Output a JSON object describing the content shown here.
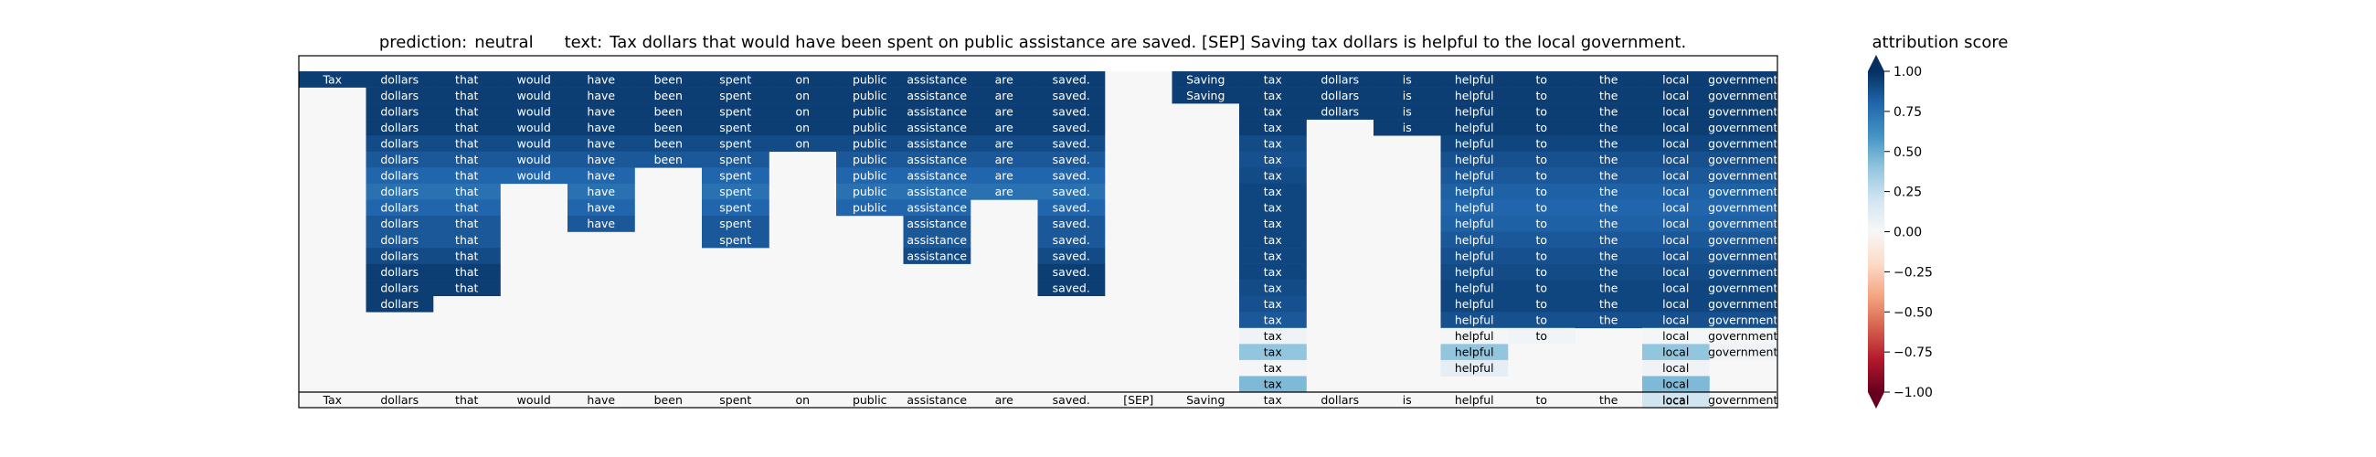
{
  "title": {
    "prediction_label": "prediction:",
    "prediction_value": "neutral",
    "text_label": "text:",
    "text_value": "Tax dollars that would have been spent on public assistance are saved. [SEP] Saving tax dollars is helpful to the local government."
  },
  "colorbar": {
    "label": "attribution score",
    "ticks": [
      "1.00",
      "0.75",
      "0.50",
      "0.25",
      "0.00",
      "−0.25",
      "−0.50",
      "−0.75",
      "−1.00"
    ]
  },
  "chart_data": {
    "type": "heatmap",
    "title": "prediction:  neutral     text:  Tax dollars that would have been spent on public assistance are saved. [SEP] Saving tax dollars is helpful to the local government.",
    "colorbar_label": "attribution score",
    "value_range": [
      -1.0,
      1.0
    ],
    "colormap": "RdBu (red = negative, white = 0, blue = positive)",
    "tokens": [
      "Tax",
      "dollars",
      "that",
      "would",
      "have",
      "been",
      "spent",
      "on",
      "public",
      "assistance",
      "are",
      "saved.",
      "[SEP]",
      "Saving",
      "tax",
      "dollars",
      "is",
      "helpful",
      "to",
      "the",
      "local",
      "government."
    ],
    "x_tick_labels": [
      "Tax",
      "dollars",
      "that",
      "would",
      "have",
      "been",
      "spent",
      "on",
      "public",
      "assistance",
      "are",
      "saved.",
      "[SEP]",
      "Saving",
      "tax",
      "dollars",
      "is",
      "helpful",
      "to",
      "the",
      "local",
      "government"
    ],
    "cell_labels": [
      "Tax",
      "dollars",
      "that",
      "would",
      "have",
      "been",
      "spent",
      "on",
      "public",
      "assistance",
      "are",
      "saved.",
      "",
      "Saving",
      "tax",
      "dollars",
      "is",
      "helpful",
      "to",
      "the",
      "local",
      "government"
    ],
    "n_rows": 21,
    "background_value": 0.0,
    "columns": [
      {
        "token": "Tax",
        "values": [
          0.95
        ]
      },
      {
        "token": "dollars",
        "values": [
          0.95,
          0.95,
          0.95,
          0.95,
          0.9,
          0.85,
          0.8,
          0.75,
          0.8,
          0.85,
          0.85,
          0.9,
          0.95,
          0.95,
          0.95
        ]
      },
      {
        "token": "that",
        "values": [
          0.95,
          0.95,
          0.95,
          0.95,
          0.9,
          0.85,
          0.8,
          0.75,
          0.8,
          0.85,
          0.85,
          0.9,
          0.95,
          0.95
        ]
      },
      {
        "token": "would",
        "values": [
          0.95,
          0.95,
          0.95,
          0.95,
          0.9,
          0.85,
          0.8
        ]
      },
      {
        "token": "have",
        "values": [
          0.95,
          0.95,
          0.95,
          0.95,
          0.9,
          0.85,
          0.8,
          0.75,
          0.8,
          0.85
        ]
      },
      {
        "token": "been",
        "values": [
          0.95,
          0.95,
          0.95,
          0.95,
          0.9,
          0.85
        ]
      },
      {
        "token": "spent",
        "values": [
          0.95,
          0.95,
          0.95,
          0.95,
          0.9,
          0.85,
          0.8,
          0.75,
          0.8,
          0.85,
          0.85
        ]
      },
      {
        "token": "on",
        "values": [
          0.95,
          0.95,
          0.95,
          0.95,
          0.9
        ]
      },
      {
        "token": "public",
        "values": [
          0.95,
          0.95,
          0.95,
          0.95,
          0.9,
          0.85,
          0.8,
          0.75,
          0.8
        ]
      },
      {
        "token": "assistance",
        "values": [
          0.95,
          0.95,
          0.95,
          0.95,
          0.9,
          0.85,
          0.8,
          0.75,
          0.8,
          0.85,
          0.85,
          0.9
        ]
      },
      {
        "token": "are",
        "values": [
          0.95,
          0.95,
          0.95,
          0.95,
          0.9,
          0.85,
          0.8,
          0.75
        ]
      },
      {
        "token": "saved.",
        "values": [
          0.95,
          0.95,
          0.95,
          0.95,
          0.9,
          0.85,
          0.8,
          0.75,
          0.8,
          0.85,
          0.85,
          0.9,
          0.95,
          0.95
        ]
      },
      {
        "token": "[SEP]",
        "values": []
      },
      {
        "token": "Saving",
        "values": [
          0.95,
          0.95
        ]
      },
      {
        "token": "tax",
        "values": [
          0.95,
          0.95,
          0.95,
          0.95,
          0.9,
          0.88,
          0.9,
          0.92,
          0.92,
          0.92,
          0.92,
          0.92,
          0.92,
          0.9,
          0.88,
          0.85,
          0.04,
          0.4,
          0.02,
          0.45
        ]
      },
      {
        "token": "dollars",
        "values": [
          0.95,
          0.95,
          0.95
        ]
      },
      {
        "token": "is",
        "values": [
          0.95,
          0.95,
          0.95,
          0.95
        ]
      },
      {
        "token": "helpful",
        "values": [
          0.95,
          0.95,
          0.95,
          0.95,
          0.92,
          0.88,
          0.85,
          0.82,
          0.8,
          0.82,
          0.85,
          0.88,
          0.9,
          0.92,
          0.92,
          0.88,
          0.02,
          0.4,
          0.1
        ]
      },
      {
        "token": "to",
        "values": [
          0.95,
          0.95,
          0.95,
          0.95,
          0.92,
          0.88,
          0.85,
          0.82,
          0.8,
          0.82,
          0.85,
          0.88,
          0.9,
          0.92,
          0.92,
          0.88,
          0.03
        ]
      },
      {
        "token": "the",
        "values": [
          0.95,
          0.95,
          0.95,
          0.95,
          0.92,
          0.88,
          0.85,
          0.82,
          0.8,
          0.82,
          0.85,
          0.88,
          0.9,
          0.92,
          0.92,
          0.88
        ]
      },
      {
        "token": "local",
        "values": [
          0.95,
          0.95,
          0.95,
          0.95,
          0.92,
          0.88,
          0.85,
          0.82,
          0.8,
          0.82,
          0.85,
          0.88,
          0.9,
          0.92,
          0.92,
          0.88,
          0.02,
          0.4,
          0.04,
          0.45,
          0.2
        ]
      },
      {
        "token": "government.",
        "values": [
          0.95,
          0.95,
          0.95,
          0.95,
          0.92,
          0.88,
          0.85,
          0.82,
          0.8,
          0.82,
          0.85,
          0.88,
          0.9,
          0.92,
          0.92,
          0.88,
          0.02,
          0.04
        ]
      }
    ]
  }
}
